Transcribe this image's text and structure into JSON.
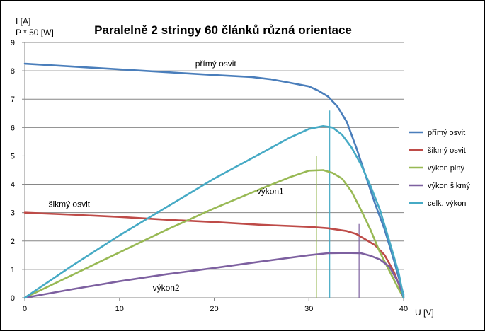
{
  "chart_data": {
    "type": "line",
    "title": "Paralelně 2 stringy 60 článků různá orientace",
    "ylabel_lines": [
      "I [A]",
      "P * 50 [W]"
    ],
    "xlabel": "U [V]",
    "xlim": [
      0,
      40
    ],
    "ylim": [
      0,
      9
    ],
    "x_ticks": [
      0,
      10,
      20,
      30,
      40
    ],
    "y_ticks": [
      0,
      1,
      2,
      3,
      4,
      5,
      6,
      7,
      8,
      9
    ],
    "grid": "horizontal",
    "legend_position": "right",
    "series": [
      {
        "name": "přímý osvit",
        "color": "#4a7ebb",
        "points": [
          [
            0,
            8.25
          ],
          [
            5,
            8.15
          ],
          [
            10,
            8.05
          ],
          [
            15,
            7.95
          ],
          [
            20,
            7.85
          ],
          [
            24,
            7.78
          ],
          [
            26,
            7.7
          ],
          [
            28,
            7.58
          ],
          [
            30,
            7.45
          ],
          [
            31,
            7.3
          ],
          [
            32,
            7.1
          ],
          [
            33,
            6.75
          ],
          [
            34,
            6.2
          ],
          [
            35,
            5.3
          ],
          [
            36,
            4.3
          ],
          [
            37,
            3.3
          ],
          [
            38,
            2.4
          ],
          [
            39,
            1.3
          ],
          [
            40,
            0.1
          ]
        ]
      },
      {
        "name": "šikmý osvit",
        "color": "#be4b48",
        "points": [
          [
            0,
            3.0
          ],
          [
            5,
            2.93
          ],
          [
            10,
            2.85
          ],
          [
            15,
            2.75
          ],
          [
            20,
            2.67
          ],
          [
            25,
            2.57
          ],
          [
            30,
            2.5
          ],
          [
            32,
            2.45
          ],
          [
            34,
            2.35
          ],
          [
            35,
            2.25
          ],
          [
            36,
            2.05
          ],
          [
            37,
            1.85
          ],
          [
            38,
            1.5
          ],
          [
            39,
            0.9
          ],
          [
            40,
            0.05
          ]
        ]
      },
      {
        "name": "výkon plný",
        "color": "#98b954",
        "points": [
          [
            0,
            0.0
          ],
          [
            5,
            0.8
          ],
          [
            10,
            1.6
          ],
          [
            15,
            2.4
          ],
          [
            20,
            3.15
          ],
          [
            25,
            3.85
          ],
          [
            28,
            4.25
          ],
          [
            30,
            4.48
          ],
          [
            31.5,
            4.5
          ],
          [
            32.5,
            4.4
          ],
          [
            33.5,
            4.2
          ],
          [
            34.5,
            3.75
          ],
          [
            35.5,
            3.1
          ],
          [
            36.5,
            2.4
          ],
          [
            37.5,
            1.6
          ],
          [
            38.5,
            0.95
          ],
          [
            39.5,
            0.3
          ],
          [
            40,
            0.0
          ]
        ]
      },
      {
        "name": "výkon šikmý",
        "color": "#7d60a0",
        "points": [
          [
            0,
            0.0
          ],
          [
            5,
            0.3
          ],
          [
            10,
            0.58
          ],
          [
            15,
            0.83
          ],
          [
            20,
            1.05
          ],
          [
            25,
            1.28
          ],
          [
            30,
            1.5
          ],
          [
            32,
            1.57
          ],
          [
            34,
            1.58
          ],
          [
            35.5,
            1.57
          ],
          [
            36.5,
            1.48
          ],
          [
            37.5,
            1.35
          ],
          [
            38.5,
            1.1
          ],
          [
            39.5,
            0.5
          ],
          [
            40,
            0.0
          ]
        ]
      },
      {
        "name": "celk. výkon",
        "color": "#46aac5",
        "points": [
          [
            0,
            0.0
          ],
          [
            5,
            1.13
          ],
          [
            10,
            2.2
          ],
          [
            15,
            3.2
          ],
          [
            20,
            4.2
          ],
          [
            25,
            5.1
          ],
          [
            28,
            5.65
          ],
          [
            30,
            5.95
          ],
          [
            31.5,
            6.05
          ],
          [
            32.5,
            6.0
          ],
          [
            33.5,
            5.75
          ],
          [
            34.5,
            5.3
          ],
          [
            35.5,
            4.7
          ],
          [
            36.5,
            3.95
          ],
          [
            37.5,
            3.1
          ],
          [
            38.5,
            2.0
          ],
          [
            39.5,
            0.85
          ],
          [
            40,
            0.0
          ]
        ]
      }
    ],
    "reference_lines": [
      {
        "color": "#98b954",
        "x": 30.8,
        "y_from": 0,
        "y_to": 5.0
      },
      {
        "color": "#46aac5",
        "x": 32.2,
        "y_from": 0,
        "y_to": 6.6
      },
      {
        "color": "#7d60a0",
        "x": 35.3,
        "y_from": 0,
        "y_to": 2.6
      }
    ],
    "annotations": [
      {
        "text": "přímý osvit",
        "x": 18,
        "y": 8.15
      },
      {
        "text": "šikmý osvit",
        "x": 2.5,
        "y": 3.2
      },
      {
        "text": "výkon1",
        "x": 24.5,
        "y": 3.65
      },
      {
        "text": "výkon2",
        "x": 13.5,
        "y": 0.25
      }
    ]
  }
}
